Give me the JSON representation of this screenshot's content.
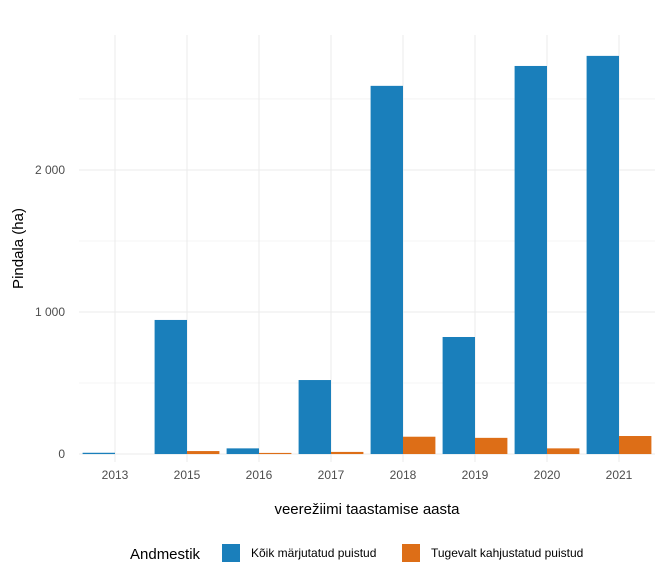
{
  "chart_data": {
    "type": "bar",
    "title": "",
    "xlabel": "veerežiimi taastamise aasta",
    "ylabel": "Pindala (ha)",
    "categories": [
      "2013",
      "2015",
      "2016",
      "2017",
      "2018",
      "2019",
      "2020",
      "2021"
    ],
    "series": [
      {
        "name": "Kõik märjutatud puistud",
        "color": "#1a7fbb",
        "values": [
          9,
          944,
          40,
          521,
          2592,
          824,
          2732,
          2803
        ]
      },
      {
        "name": "Tugevalt kahjustatud puistud",
        "color": "#dd6e17",
        "values": [
          0,
          21,
          8,
          15,
          122,
          114,
          40,
          127
        ]
      }
    ],
    "ylim": [
      -56,
      2950
    ],
    "yticks": [
      0,
      1000,
      2000
    ],
    "ytick_labels": [
      "0",
      "1 000",
      "2 000"
    ],
    "grid": true,
    "legend": {
      "title": "Andmestik",
      "placement": "bottom"
    }
  }
}
